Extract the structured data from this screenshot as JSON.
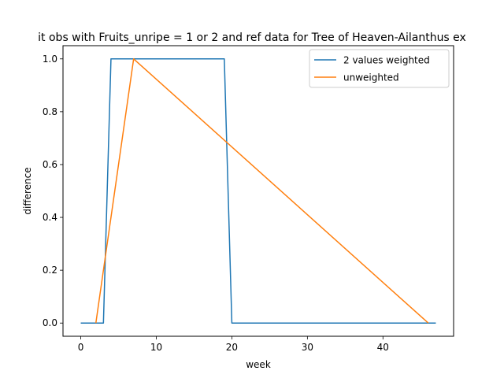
{
  "chart_data": {
    "type": "line",
    "title": "it obs with Fruits_unripe = 1 or 2 and ref data for Tree of Heaven-Ailanthus ex",
    "xlabel": "week",
    "ylabel": "difference",
    "xlim": [
      -2.35,
      49.35
    ],
    "ylim": [
      -0.05,
      1.05
    ],
    "xticks": [
      0,
      10,
      20,
      30,
      40
    ],
    "yticks": [
      0.0,
      0.2,
      0.4,
      0.6,
      0.8,
      1.0
    ],
    "xtick_labels": [
      "0",
      "10",
      "20",
      "30",
      "40"
    ],
    "ytick_labels": [
      "0.0",
      "0.2",
      "0.4",
      "0.6",
      "0.8",
      "1.0"
    ],
    "grid": false,
    "legend": "top-right",
    "series": [
      {
        "name": "2 values weighted",
        "color": "#1f77b4",
        "x": [
          0,
          1,
          2,
          3,
          4,
          5,
          6,
          7,
          8,
          9,
          10,
          11,
          12,
          13,
          14,
          15,
          16,
          17,
          18,
          19,
          20,
          21,
          22,
          23,
          24,
          25,
          26,
          27,
          28,
          29,
          30,
          31,
          32,
          33,
          34,
          35,
          36,
          37,
          38,
          39,
          40,
          41,
          42,
          43,
          44,
          45,
          46,
          47
        ],
        "y": [
          0,
          0,
          0,
          0,
          1,
          1,
          1,
          1,
          1,
          1,
          1,
          1,
          1,
          1,
          1,
          1,
          1,
          1,
          1,
          1,
          0,
          0,
          0,
          0,
          0,
          0,
          0,
          0,
          0,
          0,
          0,
          0,
          0,
          0,
          0,
          0,
          0,
          0,
          0,
          0,
          0,
          0,
          0,
          0,
          0,
          0,
          0,
          0
        ]
      },
      {
        "name": "unweighted",
        "color": "#ff7f0e",
        "x": [
          2,
          7,
          46
        ],
        "y": [
          0,
          1,
          0
        ]
      }
    ]
  }
}
